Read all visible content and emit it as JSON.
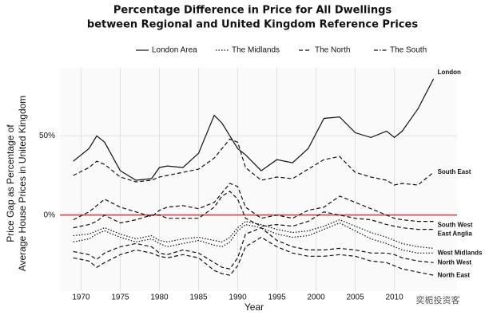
{
  "chart_data": {
    "type": "line",
    "title": [
      "Percentage Difference in Price for All Dwellings",
      "between Regional and United Kingdom Reference Prices"
    ],
    "y_label": [
      "Price Gap as Percentage of",
      "Average House Prices in United Kingdom"
    ],
    "x_label": "Year",
    "watermark": "奕栀投资客",
    "legend": [
      {
        "name": "London Area",
        "style": "solid"
      },
      {
        "name": "The Midlands",
        "style": "dotted"
      },
      {
        "name": "The North",
        "style": "dashed"
      },
      {
        "name": "The South",
        "style": "dashdot"
      }
    ],
    "x": [
      1969,
      1971,
      1972,
      1973,
      1975,
      1977,
      1979,
      1980,
      1981,
      1983,
      1985,
      1987,
      1988,
      1989,
      1990,
      1991,
      1993,
      1995,
      1997,
      1999,
      2001,
      2003,
      2005,
      2007,
      2009,
      2010,
      2011,
      2013,
      2015
    ],
    "series": [
      {
        "name": "London",
        "style": "solid",
        "color": "#111111",
        "values": [
          34,
          42,
          50,
          46,
          28,
          22,
          23,
          30,
          31,
          30,
          39,
          63,
          58,
          50,
          42,
          38,
          28,
          35,
          33,
          42,
          61,
          62,
          52,
          49,
          53,
          49,
          53,
          67,
          86
        ]
      },
      {
        "name": "South East",
        "style": "dashed",
        "color": "#111111",
        "values": [
          25,
          30,
          34,
          32,
          24,
          21,
          22,
          24,
          25,
          27,
          29,
          36,
          42,
          48,
          46,
          30,
          22,
          24,
          23,
          29,
          35,
          37,
          27,
          24,
          22,
          19,
          20,
          19,
          27
        ]
      },
      {
        "name": "South West",
        "style": "dashed",
        "color": "#111111",
        "values": [
          -3,
          2,
          6,
          10,
          5,
          2,
          -1,
          3,
          5,
          6,
          4,
          8,
          14,
          20,
          18,
          5,
          -2,
          0,
          -2,
          3,
          5,
          12,
          8,
          4,
          0,
          -2,
          -3,
          -4,
          -4
        ]
      },
      {
        "name": "East Anglia",
        "style": "dashed",
        "color": "#111111",
        "values": [
          -8,
          -6,
          -4,
          0,
          -5,
          -3,
          0,
          0,
          -2,
          -2,
          -2,
          5,
          12,
          15,
          10,
          -2,
          -7,
          -6,
          -7,
          -4,
          2,
          0,
          -2,
          -3,
          -6,
          -7,
          -8,
          -9,
          -9
        ]
      },
      {
        "name": null,
        "style": "dotted",
        "color": "#111111",
        "values": [
          -13,
          -12,
          -10,
          -8,
          -12,
          -15,
          -13,
          -16,
          -17,
          -15,
          -14,
          -16,
          -17,
          -14,
          -8,
          -4,
          -6,
          -9,
          -11,
          -10,
          -7,
          -3,
          -7,
          -11,
          -14,
          -16,
          -18,
          -20,
          -21
        ]
      },
      {
        "name": "West Midlands",
        "style": "dotted",
        "color": "#111111",
        "values": [
          -17,
          -15,
          -12,
          -10,
          -14,
          -17,
          -15,
          -18,
          -20,
          -18,
          -16,
          -19,
          -20,
          -17,
          -10,
          -6,
          -8,
          -12,
          -14,
          -13,
          -9,
          -5,
          -10,
          -15,
          -18,
          -20,
          -22,
          -24,
          -24
        ]
      },
      {
        "name": "North West",
        "style": "dashed",
        "color": "#111111",
        "values": [
          -23,
          -25,
          -28,
          -24,
          -20,
          -18,
          -20,
          -24,
          -25,
          -22,
          -24,
          -30,
          -33,
          -34,
          -27,
          -12,
          -8,
          -16,
          -20,
          -22,
          -22,
          -21,
          -22,
          -24,
          -24,
          -25,
          -27,
          -29,
          -30
        ]
      },
      {
        "name": "North East",
        "style": "dashed",
        "color": "#111111",
        "values": [
          -27,
          -29,
          -33,
          -30,
          -25,
          -22,
          -24,
          -26,
          -27,
          -25,
          -27,
          -35,
          -37,
          -38,
          -32,
          -20,
          -14,
          -20,
          -24,
          -26,
          -26,
          -25,
          -26,
          -29,
          -30,
          -32,
          -34,
          -36,
          -38
        ]
      }
    ],
    "xlim": [
      1967.3,
      2018
    ],
    "ylim": [
      -48,
      93
    ],
    "xticks": [
      1970,
      1975,
      1980,
      1985,
      1990,
      1995,
      2000,
      2005,
      2010
    ],
    "yticks": [
      {
        "value": 0,
        "label": "0%"
      },
      {
        "value": 50,
        "label": "50%"
      }
    ],
    "hline": {
      "value": 0,
      "color": "#e53935"
    },
    "grid": true
  }
}
